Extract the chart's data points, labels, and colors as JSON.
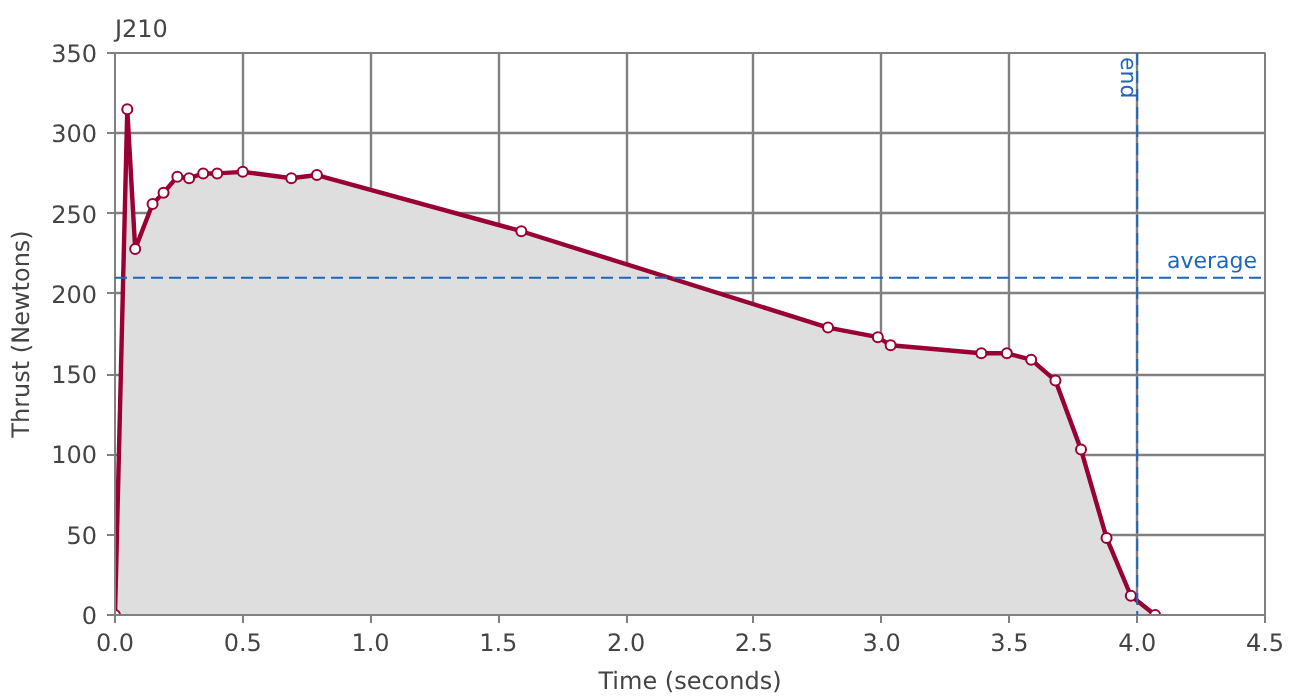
{
  "chart_data": {
    "type": "area",
    "title": "J210",
    "xlabel": "Time (seconds)",
    "ylabel": "Thrust (Newtons)",
    "x": [
      0,
      0.048,
      0.079,
      0.147,
      0.19,
      0.244,
      0.29,
      0.345,
      0.4,
      0.5,
      0.69,
      0.79,
      1.59,
      2.79,
      2.985,
      3.035,
      3.39,
      3.49,
      3.585,
      3.68,
      3.78,
      3.88,
      3.975,
      4.07
    ],
    "series": [
      {
        "color": "#990033",
        "values": [
          0,
          315,
          228,
          256,
          263,
          273,
          272,
          275,
          275,
          276,
          272,
          274,
          239,
          179,
          173,
          168,
          163,
          163,
          159,
          146,
          103,
          48,
          12,
          0
        ]
      }
    ],
    "xlim": [
      0,
      4.5
    ],
    "ylim": [
      0,
      350
    ],
    "xticks": [
      {
        "value": 0,
        "label": "0.0"
      },
      0.5,
      {
        "value": 1,
        "label": "1.0"
      },
      1.5,
      {
        "value": 2,
        "label": "2.0"
      },
      2.5,
      {
        "value": 3,
        "label": "3.0"
      },
      3.5,
      {
        "value": 4,
        "label": "4.0"
      },
      4.5
    ],
    "yticks": [
      0,
      50,
      100,
      150,
      200,
      250,
      300,
      350
    ],
    "ref_lines": [
      {
        "axis": "y",
        "value": 210,
        "label": "average",
        "color": "#1f66b8",
        "line_style": "dashed"
      },
      {
        "axis": "x",
        "value": 4.0,
        "label": "end",
        "color": "#1f66b8",
        "line_style": "dashed"
      }
    ],
    "grid": true,
    "marker": "circle",
    "line_style": "solid"
  }
}
